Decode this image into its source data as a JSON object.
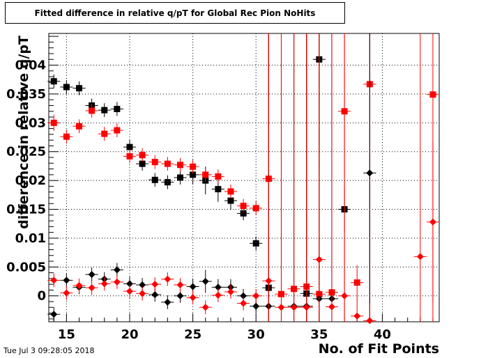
{
  "chart_data": {
    "type": "scatter",
    "title": "Fitted difference in relative q/pT for Global Rec Pion NoHits",
    "xlabel": "No. of Fit Points",
    "ylabel": "difference in relative q/pT",
    "xlim": [
      13.6,
      44.5
    ],
    "ylim": [
      -0.0045,
      0.0455
    ],
    "grid": true,
    "x_ticks": [
      15,
      20,
      25,
      30,
      35,
      40
    ],
    "y_ticks": [
      0,
      0.005,
      0.01,
      0.015,
      0.02,
      0.025,
      0.03,
      0.035,
      0.04
    ],
    "x_tick_labels": [
      "15",
      "20",
      "25",
      "30",
      "35",
      "40"
    ],
    "y_tick_labels": [
      "0",
      "0.005",
      "0.01",
      "0.015",
      "0.02",
      "0.025",
      "0.03",
      "0.035",
      "0.04"
    ],
    "series": [
      {
        "marker": "square",
        "color": "#000000",
        "x": [
          14,
          15,
          16,
          17,
          18,
          19,
          20,
          21,
          22,
          23,
          24,
          25,
          26,
          27,
          28,
          29,
          30,
          31,
          34,
          35,
          37
        ],
        "y": [
          0.0372,
          0.0362,
          0.036,
          0.033,
          0.0322,
          0.0324,
          0.0258,
          0.0229,
          0.0201,
          0.0197,
          0.0205,
          0.021,
          0.02,
          0.0185,
          0.0165,
          0.0143,
          0.0091,
          0.0014,
          0.0004,
          0.041,
          0.015
        ],
        "yerr": [
          0.0012,
          0.0012,
          0.0012,
          0.0012,
          0.0012,
          0.0012,
          0.0012,
          0.0012,
          0.0012,
          0.0012,
          0.0012,
          0.0016,
          0.0024,
          0.0022,
          0.0016,
          0.0012,
          0.0012,
          0.05,
          0.05,
          0.02,
          0.004
        ]
      },
      {
        "marker": "square",
        "color": "#ff0000",
        "x": [
          14,
          15,
          16,
          17,
          18,
          19,
          20,
          21,
          22,
          23,
          24,
          25,
          26,
          27,
          28,
          29,
          30,
          31,
          32,
          33,
          34,
          35,
          36,
          37,
          38,
          39,
          44
        ],
        "y": [
          0.03,
          0.0276,
          0.0294,
          0.0321,
          0.0281,
          0.0287,
          0.0242,
          0.0244,
          0.0232,
          0.0229,
          0.0227,
          0.0224,
          0.021,
          0.0207,
          0.0181,
          0.0156,
          0.0152,
          0.0203,
          0.0003,
          0.0012,
          0.0016,
          0.0003,
          0.0006,
          0.032,
          0.0023,
          0.0367,
          0.0349
        ],
        "yerr": [
          0.0014,
          0.0012,
          0.0012,
          0.0012,
          0.0012,
          0.0012,
          0.0012,
          0.0012,
          0.0012,
          0.0012,
          0.0012,
          0.0012,
          0.0012,
          0.0012,
          0.0012,
          0.0012,
          0.0012,
          0.05,
          0.05,
          0.05,
          0.05,
          0.05,
          0.05,
          0.05,
          0.003,
          0.05,
          0.04
        ]
      },
      {
        "marker": "diamond",
        "color": "#000000",
        "x": [
          14,
          15,
          16,
          17,
          18,
          19,
          20,
          21,
          22,
          23,
          24,
          25,
          26,
          27,
          28,
          29,
          30,
          31,
          33,
          34,
          35,
          36,
          39
        ],
        "y": [
          -0.0032,
          0.0027,
          0.0015,
          0.0037,
          0.0029,
          0.0045,
          0.0021,
          0.0019,
          0.0002,
          -0.0011,
          0.0,
          0.0016,
          0.0025,
          0.0015,
          0.0015,
          0.0,
          -0.0018,
          -0.0018,
          -0.0018,
          -0.0018,
          -0.0005,
          -0.0005,
          0.0213
        ],
        "yerr": [
          0.0012,
          0.0012,
          0.0012,
          0.0012,
          0.0012,
          0.0012,
          0.0012,
          0.0012,
          0.0012,
          0.0012,
          0.0012,
          0.0014,
          0.002,
          0.0014,
          0.0014,
          0.0012,
          0.0012,
          0.05,
          0.05,
          0.05,
          0.05,
          0.05,
          0.05
        ]
      },
      {
        "marker": "diamond",
        "color": "#ff0000",
        "x": [
          14,
          15,
          16,
          17,
          18,
          19,
          20,
          21,
          22,
          23,
          24,
          25,
          26,
          27,
          28,
          29,
          30,
          31,
          32,
          33,
          34,
          35,
          36,
          37,
          38,
          39,
          43,
          44
        ],
        "y": [
          0.0027,
          0.0005,
          0.0018,
          0.0014,
          0.0021,
          0.0024,
          0.0008,
          0.0004,
          0.002,
          0.0029,
          0.0019,
          -0.0003,
          -0.002,
          0.0001,
          0.0007,
          -0.0013,
          0.0,
          0.0026,
          -0.002,
          -0.002,
          -0.002,
          0.0063,
          -0.0019,
          0.0,
          -0.0035,
          -0.0043,
          0.0068,
          0.0128
        ],
        "yerr": [
          0.0012,
          0.0012,
          0.0012,
          0.0012,
          0.0012,
          0.0012,
          0.0012,
          0.0012,
          0.0012,
          0.0012,
          0.0012,
          0.0012,
          0.0012,
          0.0012,
          0.0012,
          0.0012,
          0.0012,
          0.05,
          0.05,
          0.05,
          0.05,
          0.05,
          0.05,
          0.05,
          0.003,
          0.003,
          0.05,
          0.014
        ]
      }
    ]
  },
  "footer": {
    "datestamp": "Tue Jul  3 09:28:05 2018"
  }
}
